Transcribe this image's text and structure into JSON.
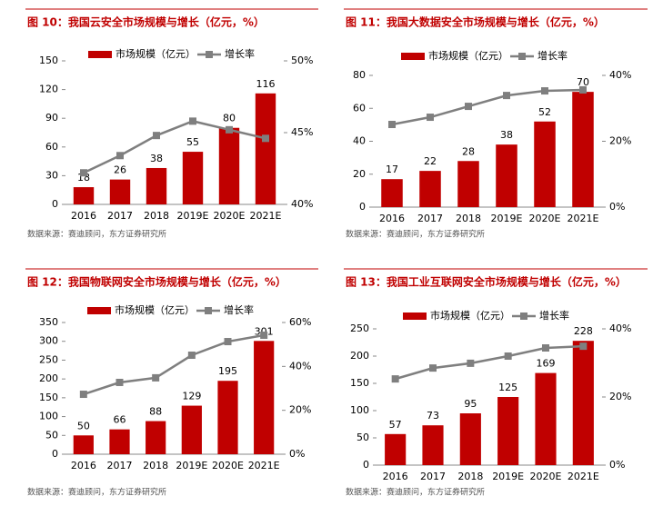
{
  "chart_data": [
    {
      "type": "combo",
      "title": "图 10：我国云安全市场规模与增长（亿元，%）",
      "categories": [
        "2016",
        "2017",
        "2018",
        "2019E",
        "2020E",
        "2021E"
      ],
      "series": [
        {
          "name": "市场规模（亿元）",
          "type": "bar",
          "color": "#c00000",
          "axis": "y",
          "values": [
            18,
            26,
            38,
            55,
            80,
            116
          ]
        },
        {
          "name": "增长率",
          "type": "line",
          "color": "#7f7f7f",
          "axis": "y2",
          "values": [
            42.2,
            43.4,
            44.8,
            45.8,
            45.2,
            44.6
          ]
        }
      ],
      "ylim": [
        0,
        150
      ],
      "yticks": [
        0,
        30,
        60,
        90,
        120,
        150
      ],
      "y2lim": [
        40,
        50
      ],
      "y2ticks": [
        {
          "value": 40,
          "label": "40%"
        },
        {
          "value": 45,
          "label": "45%"
        },
        {
          "value": 50,
          "label": "50%"
        }
      ],
      "source": "数据来源：赛迪顾问，东方证券研究所"
    },
    {
      "type": "combo",
      "title": "图 11：我国大数据安全市场规模与增长（亿元，%）",
      "categories": [
        "2016",
        "2017",
        "2018",
        "2019E",
        "2020E",
        "2021E"
      ],
      "series": [
        {
          "name": "市场规模（亿元）",
          "type": "bar",
          "color": "#c00000",
          "axis": "y",
          "values": [
            17,
            22,
            28,
            38,
            52,
            70
          ]
        },
        {
          "name": "增长率",
          "type": "line",
          "color": "#7f7f7f",
          "axis": "y2",
          "values": [
            25.1,
            27.3,
            30.6,
            33.9,
            35.3,
            35.6
          ]
        }
      ],
      "ylim": [
        0,
        80
      ],
      "yticks": [
        0,
        20,
        40,
        60,
        80
      ],
      "y2lim": [
        0,
        40
      ],
      "y2ticks": [
        {
          "value": 0,
          "label": "0%"
        },
        {
          "value": 20,
          "label": "20%"
        },
        {
          "value": 40,
          "label": "40%"
        }
      ],
      "source": "数据来源：赛迪顾问，东方证券研究所"
    },
    {
      "type": "combo",
      "title": "图 12：我国物联网安全市场规模与增长（亿元，%）",
      "categories": [
        "2016",
        "2017",
        "2018",
        "2019E",
        "2020E",
        "2021E"
      ],
      "series": [
        {
          "name": "市场规模（亿元）",
          "type": "bar",
          "color": "#c00000",
          "axis": "y",
          "values": [
            50,
            66,
            88,
            129,
            195,
            301
          ]
        },
        {
          "name": "增长率",
          "type": "line",
          "color": "#7f7f7f",
          "axis": "y2",
          "values": [
            27.3,
            32.7,
            34.8,
            45.1,
            51.3,
            54.2
          ]
        }
      ],
      "ylim": [
        0,
        350
      ],
      "yticks": [
        0,
        50,
        100,
        150,
        200,
        250,
        300,
        350
      ],
      "y2lim": [
        0,
        60
      ],
      "y2ticks": [
        {
          "value": 0,
          "label": "0%"
        },
        {
          "value": 20,
          "label": "20%"
        },
        {
          "value": 40,
          "label": "40%"
        },
        {
          "value": 60,
          "label": "60%"
        }
      ],
      "source": "数据来源：赛迪顾问，东方证券研究所"
    },
    {
      "type": "combo",
      "title": "图 13：我国工业互联网安全市场规模与增长（亿元，%）",
      "categories": [
        "2016",
        "2017",
        "2018",
        "2019E",
        "2020E",
        "2021E"
      ],
      "series": [
        {
          "name": "市场规模（亿元）",
          "type": "bar",
          "color": "#c00000",
          "axis": "y",
          "values": [
            57,
            73,
            95,
            125,
            169,
            228
          ]
        },
        {
          "name": "增长率",
          "type": "line",
          "color": "#7f7f7f",
          "axis": "y2",
          "values": [
            25.3,
            28.5,
            29.9,
            32.0,
            34.4,
            34.9
          ]
        }
      ],
      "ylim": [
        0,
        250
      ],
      "yticks": [
        0,
        50,
        100,
        150,
        200,
        250
      ],
      "y2lim": [
        0,
        40
      ],
      "y2ticks": [
        {
          "value": 0,
          "label": "0%"
        },
        {
          "value": 20,
          "label": "20%"
        },
        {
          "value": 40,
          "label": "40%"
        }
      ],
      "source": "数据来源：赛迪顾问，东方证券研究所"
    }
  ]
}
